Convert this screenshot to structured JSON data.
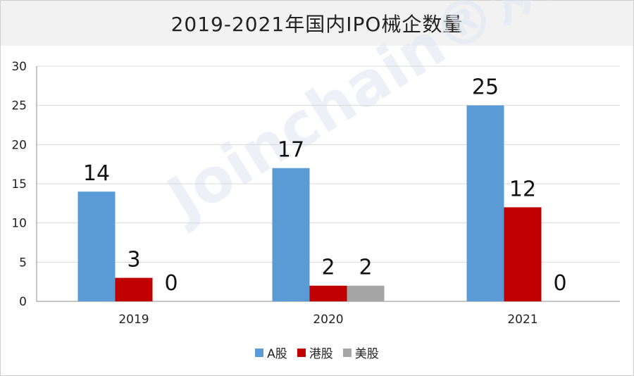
{
  "chart_data": {
    "type": "bar",
    "title": "2019-2021年国内IPO械企数量",
    "categories": [
      "2019",
      "2020",
      "2021"
    ],
    "series": [
      {
        "name": "A股",
        "color": "#5b9bd5",
        "values": [
          14,
          17,
          25
        ]
      },
      {
        "name": "港股",
        "color": "#c00000",
        "values": [
          3,
          2,
          12
        ]
      },
      {
        "name": "美股",
        "color": "#a5a5a5",
        "values": [
          0,
          2,
          0
        ]
      }
    ],
    "ylim": [
      0,
      30
    ],
    "yticks": [
      0,
      5,
      10,
      15,
      20,
      25,
      30
    ],
    "grid": true,
    "legend_position": "bottom",
    "watermark": "Joinchain®众成"
  }
}
